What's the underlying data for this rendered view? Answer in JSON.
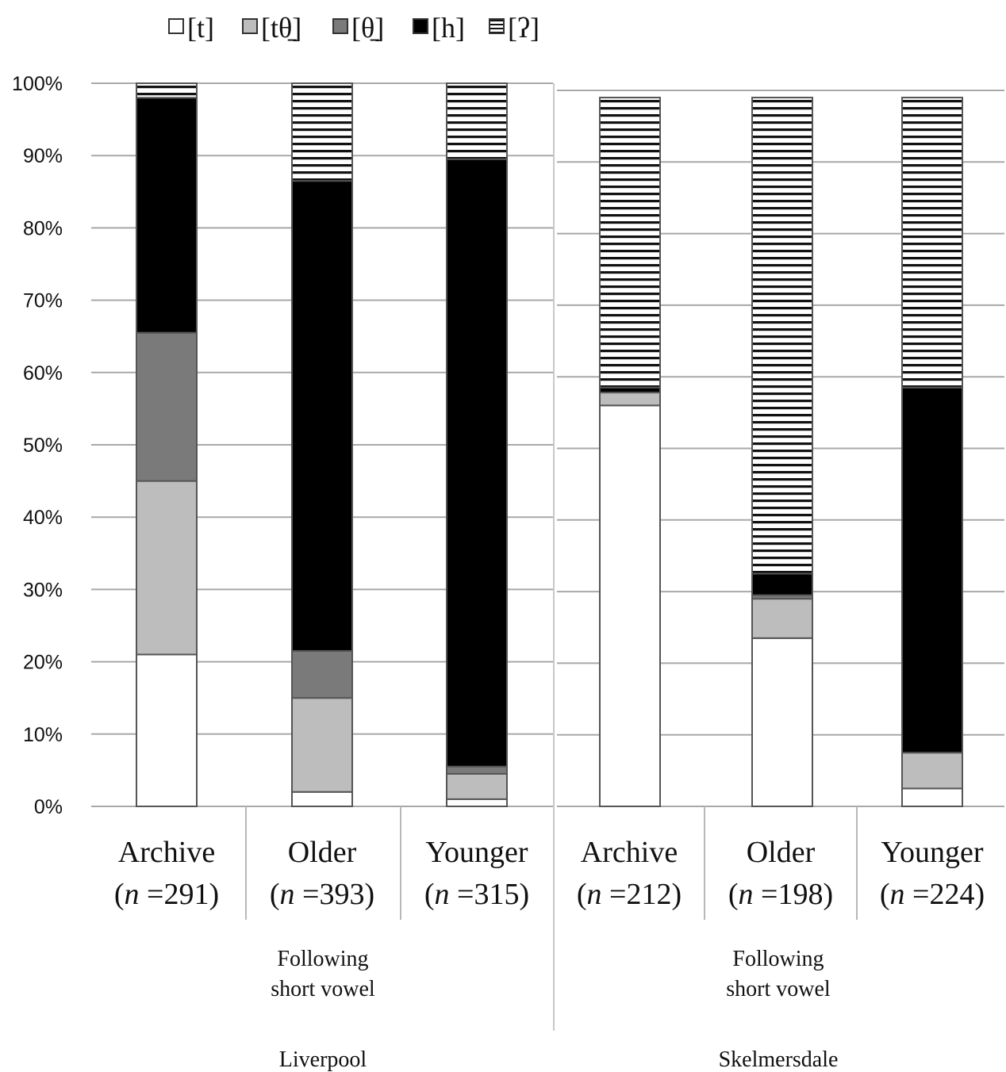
{
  "chart_data": {
    "type": "bar",
    "stacked": true,
    "percent": true,
    "legend_position": "top",
    "grid": true,
    "ylim": [
      0,
      100
    ],
    "y_ticks": [
      "0%",
      "10%",
      "20%",
      "30%",
      "40%",
      "50%",
      "60%",
      "70%",
      "80%",
      "90%",
      "100%"
    ],
    "panels": [
      {
        "group_name": "Liverpool",
        "sub_label_lines": [
          "Following",
          "short vowel"
        ],
        "categories": [
          {
            "name": "Archive",
            "n_prefix": "(",
            "n_var": "n",
            "n_eq": " =291)"
          },
          {
            "name": "Older",
            "n_prefix": "(",
            "n_var": "n",
            "n_eq": " =393)"
          },
          {
            "name": "Younger",
            "n_prefix": "(",
            "n_var": "n",
            "n_eq": " =315)"
          }
        ],
        "series_values": {
          "t": [
            21,
            2,
            1
          ],
          "tth": [
            24,
            13,
            3.5
          ],
          "th": [
            20.5,
            6.5,
            1
          ],
          "h": [
            32.5,
            65,
            84
          ],
          "glottal": [
            2,
            13.5,
            10.5
          ]
        }
      },
      {
        "group_name": "Skelmersdale",
        "sub_label_lines": [
          "Following",
          "short vowel"
        ],
        "categories": [
          {
            "name": "Archive",
            "n_prefix": "(",
            "n_var": "n",
            "n_eq": " =212)"
          },
          {
            "name": "Older",
            "n_prefix": "(",
            "n_var": "n",
            "n_eq": " =198)"
          },
          {
            "name": "Younger",
            "n_prefix": "(",
            "n_var": "n",
            "n_eq": " =224)"
          }
        ],
        "series_values": {
          "t": [
            56,
            23.5,
            2.5
          ],
          "tth": [
            1.8,
            5.5,
            5
          ],
          "th": [
            0,
            0.5,
            0
          ],
          "h": [
            0.7,
            3,
            51
          ],
          "glottal": [
            40.5,
            66.5,
            40.5
          ]
        }
      }
    ],
    "series": [
      {
        "key": "t",
        "name": "[t]",
        "fill": "#ffffff",
        "pattern": "solid"
      },
      {
        "key": "tth",
        "name": "[tθ̠]",
        "fill": "#bdbdbd",
        "pattern": "solid"
      },
      {
        "key": "th",
        "name": "[θ̠]",
        "fill": "#7a7a7a",
        "pattern": "solid"
      },
      {
        "key": "h",
        "name": "[h]",
        "fill": "#000000",
        "pattern": "solid"
      },
      {
        "key": "glottal",
        "name": "[ʔ]",
        "fill": "#ffffff",
        "pattern": "horizontal-stripes"
      }
    ]
  }
}
